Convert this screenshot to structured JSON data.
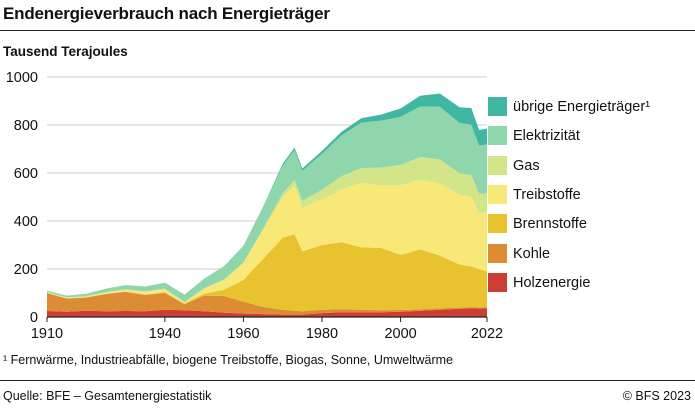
{
  "header": {
    "title": "Endenergieverbrauch nach Energieträger",
    "unit_label": "Tausend Terajoules"
  },
  "footer": {
    "footnote": "¹ Fernwärme, Industrieabfälle, biogene Treibstoffe, Biogas, Sonne, Umweltwärme",
    "source": "Quelle: BFE – Gesamtenergiestatistik",
    "copyright": "© BFS 2023"
  },
  "chart_data": {
    "type": "area",
    "stacked": true,
    "title": "Endenergieverbrauch nach Energieträger",
    "ylabel": "Tausend Terajoules",
    "xlabel": "",
    "xlim": [
      1910,
      2022
    ],
    "ylim": [
      0,
      1000
    ],
    "x_ticks": [
      1910,
      1940,
      1960,
      1980,
      2000,
      2022
    ],
    "y_ticks": [
      0,
      200,
      400,
      600,
      800,
      1000
    ],
    "grid": true,
    "legend_position": "right",
    "x": [
      1910,
      1915,
      1920,
      1925,
      1930,
      1935,
      1940,
      1945,
      1950,
      1955,
      1960,
      1965,
      1970,
      1973,
      1975,
      1980,
      1985,
      1990,
      1995,
      2000,
      2005,
      2010,
      2015,
      2018,
      2020,
      2022
    ],
    "series": [
      {
        "name": "Holzenergie",
        "color": "#cc3e34",
        "values": [
          25,
          22,
          26,
          24,
          25,
          24,
          30,
          28,
          24,
          18,
          14,
          12,
          10,
          10,
          10,
          16,
          20,
          20,
          20,
          22,
          26,
          30,
          34,
          36,
          35,
          36
        ]
      },
      {
        "name": "Kohle",
        "color": "#dc8c35",
        "values": [
          75,
          55,
          55,
          72,
          80,
          68,
          70,
          25,
          65,
          70,
          50,
          30,
          20,
          16,
          14,
          14,
          12,
          10,
          8,
          7,
          6,
          6,
          5,
          5,
          4,
          4
        ]
      },
      {
        "name": "Brennstoffe",
        "color": "#e8c22f",
        "values": [
          0,
          0,
          0,
          0,
          0,
          2,
          3,
          3,
          8,
          25,
          90,
          200,
          300,
          320,
          250,
          270,
          280,
          260,
          260,
          230,
          250,
          220,
          180,
          170,
          160,
          150
        ]
      },
      {
        "name": "Treibstoffe",
        "color": "#f8e877",
        "values": [
          2,
          2,
          3,
          5,
          8,
          10,
          12,
          4,
          20,
          40,
          70,
          120,
          170,
          200,
          180,
          190,
          220,
          270,
          260,
          290,
          290,
          300,
          290,
          290,
          230,
          250
        ]
      },
      {
        "name": "Gas",
        "color": "#d2e689",
        "values": [
          3,
          3,
          3,
          3,
          3,
          3,
          3,
          3,
          3,
          3,
          3,
          5,
          15,
          25,
          30,
          40,
          55,
          60,
          75,
          85,
          95,
          100,
          90,
          90,
          85,
          75
        ]
      },
      {
        "name": "Elektrizität",
        "color": "#8fd6ad",
        "values": [
          5,
          7,
          10,
          14,
          17,
          20,
          25,
          30,
          40,
          55,
          70,
          90,
          115,
          125,
          125,
          150,
          170,
          190,
          195,
          200,
          210,
          220,
          210,
          210,
          200,
          205
        ]
      },
      {
        "name": "übrige Energieträger¹",
        "color": "#3fb7a2",
        "values": [
          0,
          0,
          0,
          0,
          0,
          0,
          0,
          0,
          0,
          0,
          0,
          2,
          8,
          10,
          10,
          12,
          15,
          18,
          25,
          35,
          45,
          55,
          65,
          70,
          65,
          65
        ]
      }
    ],
    "legend_order": [
      "übrige Energieträger¹",
      "Elektrizität",
      "Gas",
      "Treibstoffe",
      "Brennstoffe",
      "Kohle",
      "Holzenergie"
    ]
  }
}
